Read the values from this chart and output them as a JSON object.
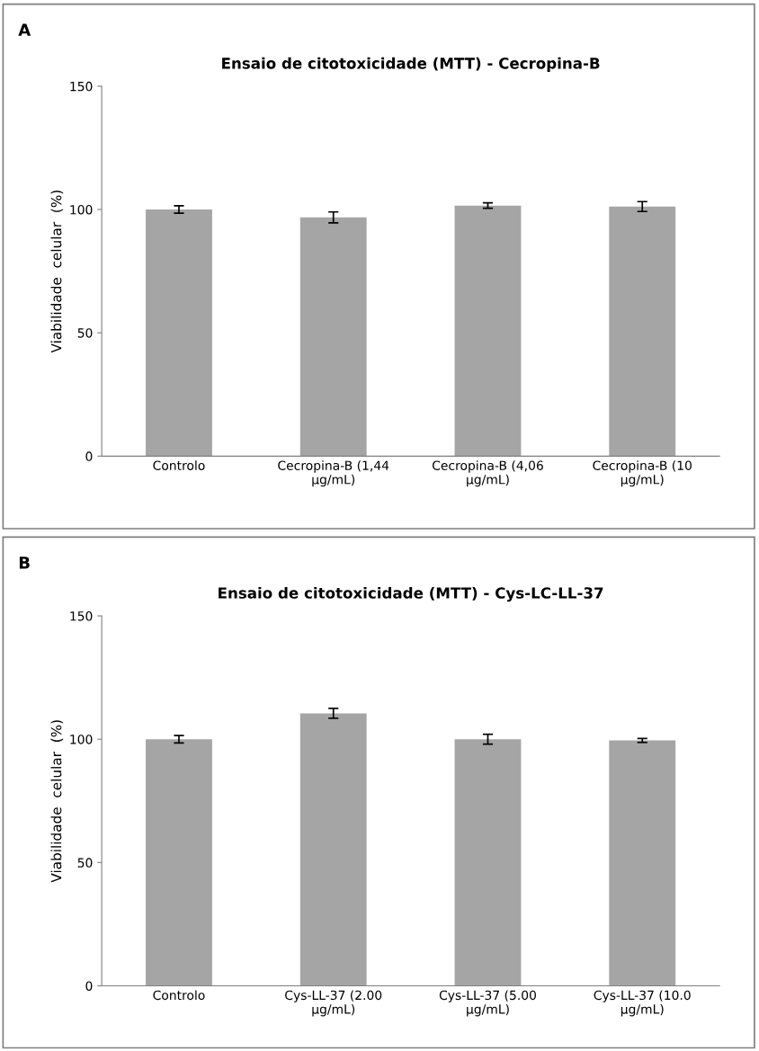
{
  "chart_data": [
    {
      "type": "bar",
      "title": "Ensaio de citotoxicidade (MTT) - Cecropina-B",
      "ylabel": "Viabilidade  celular  (%)",
      "annotations": [
        "A"
      ],
      "categories": [
        "Controlo",
        "Cecropina-B (1,44 µg/mL)",
        "Cecropina-B (4,06 µg/mL)",
        "Cecropina-B (10 µg/mL)"
      ],
      "values": [
        100,
        96.8,
        101.6,
        101.2
      ],
      "errors": [
        1.5,
        2.2,
        1.1,
        2
      ],
      "color": "#a5a5a5",
      "ylim": [
        0,
        150
      ],
      "yticks": [
        0,
        50,
        100,
        150
      ],
      "grid": false,
      "legend": false
    },
    {
      "type": "bar",
      "title": "Ensaio de citotoxicidade (MTT) - Cys-LC-LL-37",
      "ylabel": "Viabilidade  celular  (%)",
      "annotations": [
        "B"
      ],
      "categories": [
        "Controlo",
        "Cys-LL-37 (2.00 µg/mL)",
        "Cys-LL-37 (5.00 µg/mL)",
        "Cys-LL-37 (10.0 µg/mL)"
      ],
      "values": [
        100,
        110.5,
        100,
        99.5
      ],
      "errors": [
        1.5,
        2,
        2,
        0.8
      ],
      "color": "#a5a5a5",
      "ylim": [
        0,
        150
      ],
      "yticks": [
        0,
        50,
        100,
        150
      ],
      "grid": false,
      "legend": false
    }
  ]
}
